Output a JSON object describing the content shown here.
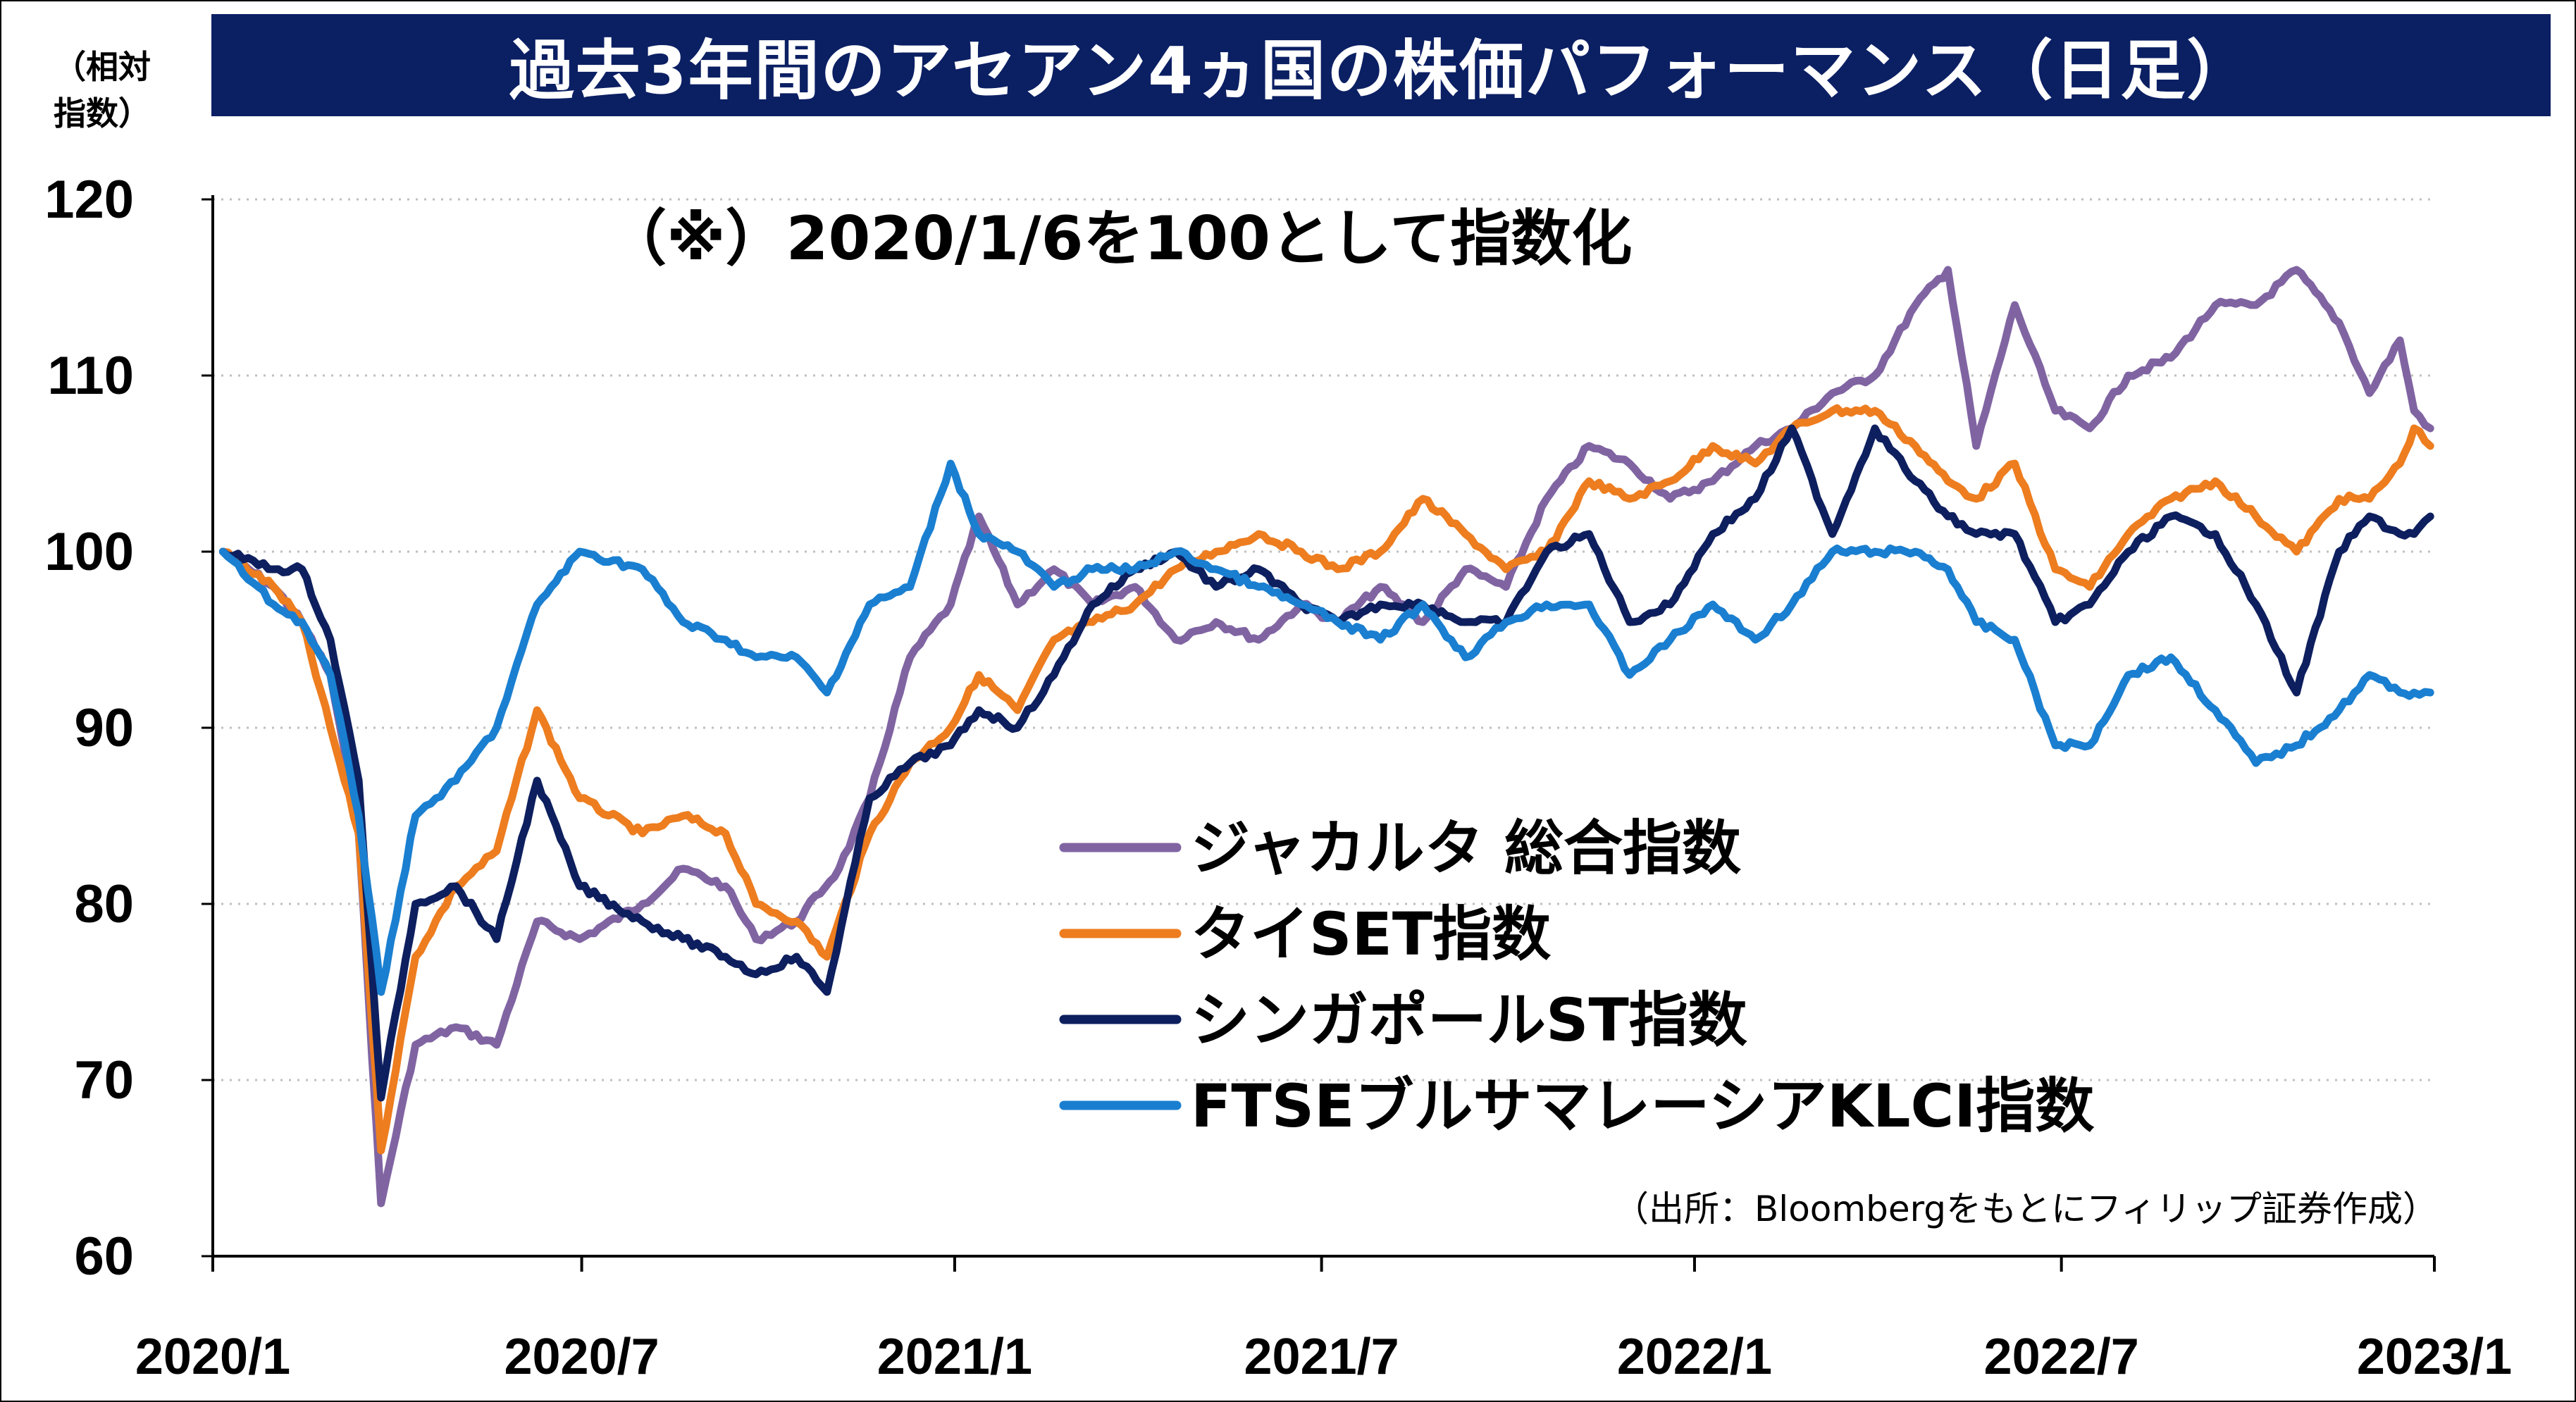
{
  "title": "過去3年間のアセアン4ヵ国の株価パフォーマンス（日足）",
  "y_unit": [
    "（相対",
    "指数）"
  ],
  "subtitle": "（※）2020/1/6を100として指数化",
  "source": "（出所：Bloombergをもとにフィリップ証券作成）",
  "colors": {
    "title_bg": "#0b1f63",
    "jakarta": "#8064a2",
    "thai": "#ed7d1f",
    "singapore": "#0d1f5e",
    "malaysia": "#1a7fd0",
    "grid": "#bfbfbf"
  },
  "chart_data": {
    "type": "line",
    "x_ticks": [
      "2020/1",
      "2020/7",
      "2021/1",
      "2021/7",
      "2022/1",
      "2022/7",
      "2023/1"
    ],
    "y_ticks": [
      60,
      70,
      80,
      90,
      100,
      110,
      120
    ],
    "ylim": [
      60,
      120
    ],
    "x_range": [
      "2020/1",
      "2023/1"
    ],
    "grid": "horizontal-dotted",
    "legend_position": "center-right",
    "series": [
      {
        "name": "ジャカルタ 総合指数",
        "color_key": "jakarta",
        "points": [
          [
            "2020-01-06",
            100
          ],
          [
            "2020-01-31",
            98
          ],
          [
            "2020-02-14",
            96
          ],
          [
            "2020-02-28",
            93
          ],
          [
            "2020-03-13",
            84
          ],
          [
            "2020-03-24",
            63
          ],
          [
            "2020-04-10",
            72
          ],
          [
            "2020-04-30",
            73
          ],
          [
            "2020-05-20",
            72
          ],
          [
            "2020-06-09",
            79
          ],
          [
            "2020-06-30",
            78
          ],
          [
            "2020-07-31",
            80
          ],
          [
            "2020-08-20",
            82
          ],
          [
            "2020-09-10",
            81
          ],
          [
            "2020-09-25",
            78
          ],
          [
            "2020-10-15",
            79
          ],
          [
            "2020-11-05",
            82
          ],
          [
            "2020-11-20",
            86
          ],
          [
            "2020-12-10",
            94
          ],
          [
            "2020-12-30",
            97
          ],
          [
            "2021-01-13",
            102
          ],
          [
            "2021-02-01",
            97
          ],
          [
            "2021-02-19",
            99
          ],
          [
            "2021-03-10",
            97
          ],
          [
            "2021-03-31",
            98
          ],
          [
            "2021-04-20",
            95
          ],
          [
            "2021-05-10",
            96
          ],
          [
            "2021-05-31",
            95
          ],
          [
            "2021-06-21",
            97
          ],
          [
            "2021-07-09",
            96
          ],
          [
            "2021-07-30",
            98
          ],
          [
            "2021-08-20",
            96
          ],
          [
            "2021-09-10",
            99
          ],
          [
            "2021-09-30",
            98
          ],
          [
            "2021-10-20",
            103
          ],
          [
            "2021-11-10",
            106
          ],
          [
            "2021-11-30",
            105
          ],
          [
            "2021-12-20",
            103
          ],
          [
            "2022-01-10",
            104
          ],
          [
            "2022-01-31",
            106
          ],
          [
            "2022-02-18",
            107
          ],
          [
            "2022-03-10",
            109
          ],
          [
            "2022-03-31",
            110
          ],
          [
            "2022-04-20",
            114
          ],
          [
            "2022-05-06",
            116
          ],
          [
            "2022-05-20",
            106
          ],
          [
            "2022-06-08",
            114
          ],
          [
            "2022-06-28",
            108
          ],
          [
            "2022-07-15",
            107
          ],
          [
            "2022-08-03",
            110
          ],
          [
            "2022-08-24",
            111
          ],
          [
            "2022-09-15",
            114
          ],
          [
            "2022-10-05",
            114
          ],
          [
            "2022-10-25",
            116
          ],
          [
            "2022-11-15",
            113
          ],
          [
            "2022-11-30",
            109
          ],
          [
            "2022-12-15",
            112
          ],
          [
            "2022-12-22",
            108
          ],
          [
            "2022-12-30",
            107
          ]
        ]
      },
      {
        "name": "タイSET指数",
        "color_key": "thai",
        "points": [
          [
            "2020-01-06",
            100
          ],
          [
            "2020-01-31",
            98
          ],
          [
            "2020-02-14",
            96
          ],
          [
            "2020-02-28",
            90
          ],
          [
            "2020-03-13",
            84
          ],
          [
            "2020-03-24",
            66
          ],
          [
            "2020-04-10",
            77
          ],
          [
            "2020-04-30",
            81
          ],
          [
            "2020-05-20",
            83
          ],
          [
            "2020-06-09",
            91
          ],
          [
            "2020-06-30",
            86
          ],
          [
            "2020-07-31",
            84
          ],
          [
            "2020-08-20",
            85
          ],
          [
            "2020-09-10",
            84
          ],
          [
            "2020-09-25",
            80
          ],
          [
            "2020-10-15",
            79
          ],
          [
            "2020-10-30",
            77
          ],
          [
            "2020-11-20",
            84
          ],
          [
            "2020-12-10",
            88
          ],
          [
            "2020-12-30",
            90
          ],
          [
            "2021-01-13",
            93
          ],
          [
            "2021-02-01",
            91
          ],
          [
            "2021-02-19",
            95
          ],
          [
            "2021-03-10",
            96
          ],
          [
            "2021-03-31",
            97
          ],
          [
            "2021-04-20",
            99
          ],
          [
            "2021-05-10",
            100
          ],
          [
            "2021-05-31",
            101
          ],
          [
            "2021-06-21",
            100
          ],
          [
            "2021-07-09",
            99
          ],
          [
            "2021-07-30",
            100
          ],
          [
            "2021-08-20",
            103
          ],
          [
            "2021-09-10",
            101
          ],
          [
            "2021-09-30",
            99
          ],
          [
            "2021-10-20",
            100
          ],
          [
            "2021-11-10",
            104
          ],
          [
            "2021-11-30",
            103
          ],
          [
            "2021-12-20",
            104
          ],
          [
            "2022-01-10",
            106
          ],
          [
            "2022-01-31",
            105
          ],
          [
            "2022-02-18",
            107
          ],
          [
            "2022-03-10",
            108
          ],
          [
            "2022-03-31",
            108
          ],
          [
            "2022-04-20",
            106
          ],
          [
            "2022-05-06",
            104
          ],
          [
            "2022-05-20",
            103
          ],
          [
            "2022-06-08",
            105
          ],
          [
            "2022-06-28",
            99
          ],
          [
            "2022-07-15",
            98
          ],
          [
            "2022-08-03",
            101
          ],
          [
            "2022-08-24",
            103
          ],
          [
            "2022-09-15",
            104
          ],
          [
            "2022-10-05",
            102
          ],
          [
            "2022-10-25",
            100
          ],
          [
            "2022-11-15",
            103
          ],
          [
            "2022-11-30",
            103
          ],
          [
            "2022-12-15",
            105
          ],
          [
            "2022-12-22",
            107
          ],
          [
            "2022-12-30",
            106
          ]
        ]
      },
      {
        "name": "シンガポールST指数",
        "color_key": "singapore",
        "points": [
          [
            "2020-01-06",
            100
          ],
          [
            "2020-01-31",
            99
          ],
          [
            "2020-02-14",
            99
          ],
          [
            "2020-02-28",
            95
          ],
          [
            "2020-03-13",
            87
          ],
          [
            "2020-03-24",
            69
          ],
          [
            "2020-04-10",
            80
          ],
          [
            "2020-04-30",
            81
          ],
          [
            "2020-05-20",
            78
          ],
          [
            "2020-06-09",
            87
          ],
          [
            "2020-06-30",
            81
          ],
          [
            "2020-07-31",
            79
          ],
          [
            "2020-08-20",
            78
          ],
          [
            "2020-09-10",
            77
          ],
          [
            "2020-09-25",
            76
          ],
          [
            "2020-10-15",
            77
          ],
          [
            "2020-10-30",
            75
          ],
          [
            "2020-11-20",
            86
          ],
          [
            "2020-12-10",
            88
          ],
          [
            "2020-12-30",
            89
          ],
          [
            "2021-01-13",
            91
          ],
          [
            "2021-02-01",
            90
          ],
          [
            "2021-02-19",
            93
          ],
          [
            "2021-03-10",
            97
          ],
          [
            "2021-03-31",
            99
          ],
          [
            "2021-04-20",
            100
          ],
          [
            "2021-05-10",
            98
          ],
          [
            "2021-05-31",
            99
          ],
          [
            "2021-06-21",
            97
          ],
          [
            "2021-07-09",
            96
          ],
          [
            "2021-07-30",
            97
          ],
          [
            "2021-08-20",
            97
          ],
          [
            "2021-09-10",
            96
          ],
          [
            "2021-09-30",
            96
          ],
          [
            "2021-10-20",
            100
          ],
          [
            "2021-11-10",
            101
          ],
          [
            "2021-11-30",
            96
          ],
          [
            "2021-12-20",
            97
          ],
          [
            "2022-01-10",
            101
          ],
          [
            "2022-01-31",
            103
          ],
          [
            "2022-02-18",
            107
          ],
          [
            "2022-03-10",
            101
          ],
          [
            "2022-03-31",
            107
          ],
          [
            "2022-04-20",
            104
          ],
          [
            "2022-05-06",
            102
          ],
          [
            "2022-05-20",
            101
          ],
          [
            "2022-06-08",
            101
          ],
          [
            "2022-06-28",
            96
          ],
          [
            "2022-07-15",
            97
          ],
          [
            "2022-08-03",
            100
          ],
          [
            "2022-08-24",
            102
          ],
          [
            "2022-09-15",
            101
          ],
          [
            "2022-10-05",
            97
          ],
          [
            "2022-10-25",
            92
          ],
          [
            "2022-11-15",
            100
          ],
          [
            "2022-11-30",
            102
          ],
          [
            "2022-12-15",
            101
          ],
          [
            "2022-12-22",
            101
          ],
          [
            "2022-12-30",
            102
          ]
        ]
      },
      {
        "name": "FTSEブルサマレーシアKLCI指数",
        "color_key": "malaysia",
        "points": [
          [
            "2020-01-06",
            100
          ],
          [
            "2020-01-31",
            97
          ],
          [
            "2020-02-14",
            96
          ],
          [
            "2020-02-28",
            93
          ],
          [
            "2020-03-13",
            85
          ],
          [
            "2020-03-24",
            75
          ],
          [
            "2020-04-10",
            85
          ],
          [
            "2020-04-30",
            87
          ],
          [
            "2020-05-20",
            90
          ],
          [
            "2020-06-09",
            97
          ],
          [
            "2020-06-30",
            100
          ],
          [
            "2020-07-31",
            99
          ],
          [
            "2020-08-20",
            96
          ],
          [
            "2020-09-10",
            95
          ],
          [
            "2020-09-25",
            94
          ],
          [
            "2020-10-15",
            94
          ],
          [
            "2020-10-30",
            92
          ],
          [
            "2020-11-20",
            97
          ],
          [
            "2020-12-10",
            98
          ],
          [
            "2020-12-30",
            105
          ],
          [
            "2021-01-13",
            101
          ],
          [
            "2021-02-01",
            100
          ],
          [
            "2021-02-19",
            98
          ],
          [
            "2021-03-10",
            99
          ],
          [
            "2021-03-31",
            99
          ],
          [
            "2021-04-20",
            100
          ],
          [
            "2021-05-10",
            99
          ],
          [
            "2021-05-31",
            98
          ],
          [
            "2021-06-21",
            97
          ],
          [
            "2021-07-09",
            96
          ],
          [
            "2021-07-30",
            95
          ],
          [
            "2021-08-20",
            97
          ],
          [
            "2021-09-10",
            94
          ],
          [
            "2021-09-30",
            96
          ],
          [
            "2021-10-20",
            97
          ],
          [
            "2021-11-10",
            97
          ],
          [
            "2021-11-30",
            93
          ],
          [
            "2021-12-20",
            95
          ],
          [
            "2022-01-10",
            97
          ],
          [
            "2022-01-31",
            95
          ],
          [
            "2022-02-18",
            97
          ],
          [
            "2022-03-10",
            100
          ],
          [
            "2022-03-31",
            100
          ],
          [
            "2022-04-20",
            100
          ],
          [
            "2022-05-06",
            99
          ],
          [
            "2022-05-20",
            96
          ],
          [
            "2022-06-08",
            95
          ],
          [
            "2022-06-28",
            89
          ],
          [
            "2022-07-15",
            89
          ],
          [
            "2022-08-03",
            93
          ],
          [
            "2022-08-24",
            94
          ],
          [
            "2022-09-15",
            91
          ],
          [
            "2022-10-05",
            88
          ],
          [
            "2022-10-25",
            89
          ],
          [
            "2022-11-15",
            91
          ],
          [
            "2022-11-30",
            93
          ],
          [
            "2022-12-15",
            92
          ],
          [
            "2022-12-22",
            92
          ],
          [
            "2022-12-30",
            92
          ]
        ]
      }
    ]
  }
}
